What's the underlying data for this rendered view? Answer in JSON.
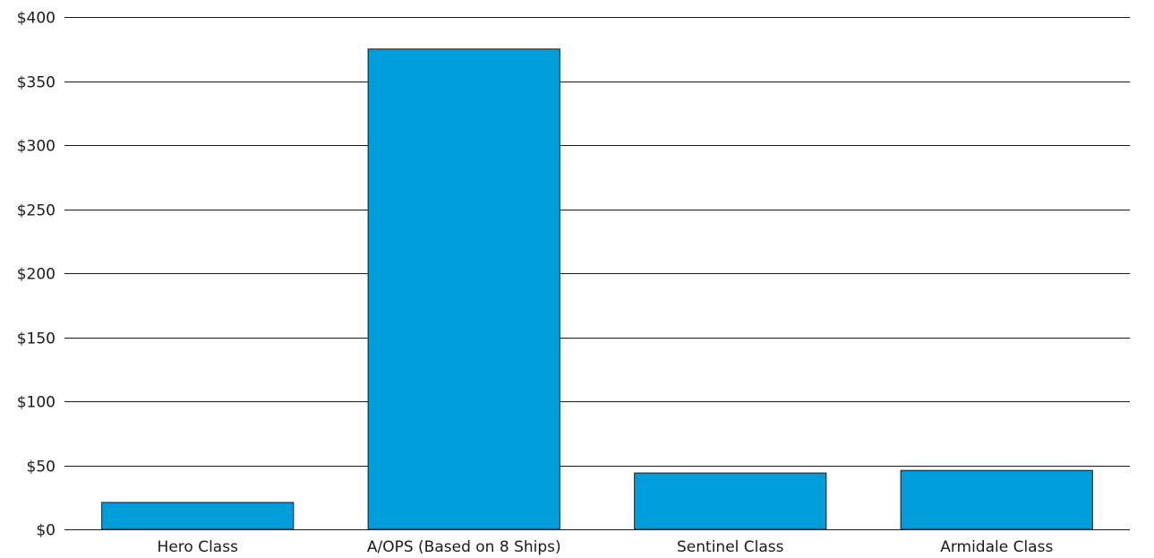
{
  "chart_data": {
    "type": "bar",
    "title": "",
    "xlabel": "",
    "ylabel": "",
    "categories": [
      "Hero Class",
      "A/OPS (Based on 8 Ships)",
      "Sentinel Class",
      "Armidale Class"
    ],
    "values": [
      21,
      375,
      44,
      46
    ],
    "ylim": [
      0,
      400
    ],
    "yticks": [
      0,
      50,
      100,
      150,
      200,
      250,
      300,
      350,
      400
    ],
    "ytick_labels": [
      "$0",
      "$50",
      "$100",
      "$150",
      "$200",
      "$250",
      "$300",
      "$350",
      "$400"
    ],
    "grid": true,
    "legend": "none",
    "colors": {
      "bar_fill": "#009ddb",
      "bar_stroke": "#1a1a1a",
      "grid": "#1a1a1a"
    }
  }
}
